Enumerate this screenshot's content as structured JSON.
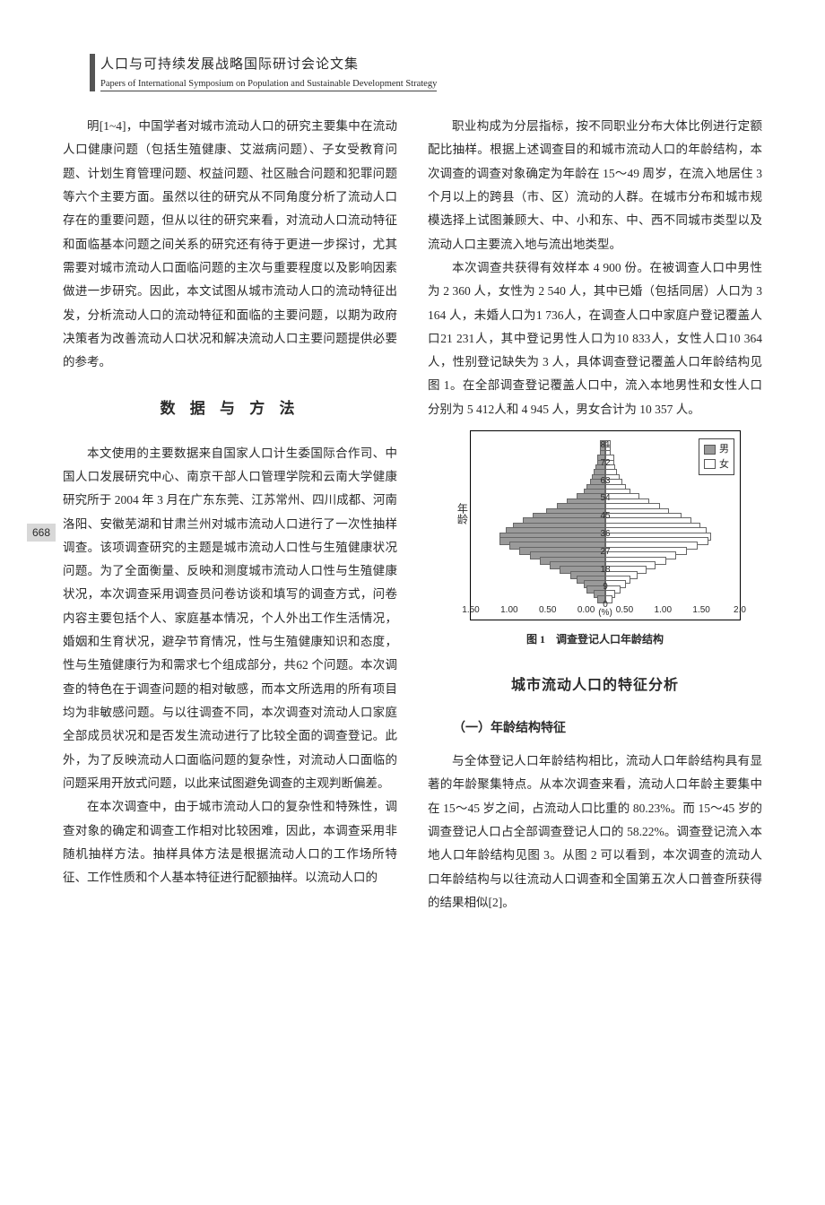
{
  "header": {
    "title_cn": "人口与可持续发展战略国际研讨会论文集",
    "title_en": "Papers of International Symposium on Population and Sustainable Development Strategy"
  },
  "page_number": "668",
  "left_column": {
    "p1": "明[1~4]，中国学者对城市流动人口的研究主要集中在流动人口健康问题（包括生殖健康、艾滋病问题）、子女受教育问题、计划生育管理问题、权益问题、社区融合问题和犯罪问题等六个主要方面。虽然以往的研究从不同角度分析了流动人口存在的重要问题，但从以往的研究来看，对流动人口流动特征和面临基本问题之间关系的研究还有待于更进一步探讨，尤其需要对城市流动人口面临问题的主次与重要程度以及影响因素做进一步研究。因此，本文试图从城市流动人口的流动特征出发，分析流动人口的流动特征和面临的主要问题，以期为政府决策者为改善流动人口状况和解决流动人口主要问题提供必要的参考。",
    "section1_title": "数 据 与 方 法",
    "p2": "本文使用的主要数据来自国家人口计生委国际合作司、中国人口发展研究中心、南京干部人口管理学院和云南大学健康研究所于 2004 年 3 月在广东东莞、江苏常州、四川成都、河南洛阳、安徽芜湖和甘肃兰州对城市流动人口进行了一次性抽样调查。该项调查研究的主题是城市流动人口性与生殖健康状况问题。为了全面衡量、反映和测度城市流动人口性与生殖健康状况，本次调查采用调查员问卷访谈和填写的调查方式，问卷内容主要包括个人、家庭基本情况，个人外出工作生活情况，婚姻和生育状况，避孕节育情况，性与生殖健康知识和态度，性与生殖健康行为和需求七个组成部分，共62 个问题。本次调查的特色在于调查问题的相对敏感，而本文所选用的所有项目均为非敏感问题。与以往调查不同，本次调查对流动人口家庭全部成员状况和是否发生流动进行了比较全面的调查登记。此外，为了反映流动人口面临问题的复杂性，对流动人口面临的问题采用开放式问题，以此来试图避免调查的主观判断偏差。",
    "p3": "在本次调查中，由于城市流动人口的复杂性和特殊性，调查对象的确定和调查工作相对比较困难，因此，本调查采用非随机抽样方法。抽样具体方法是根据流动人口的工作场所特征、工作性质和个人基本特征进行配额抽样。以流动人口的"
  },
  "right_column": {
    "p1": "职业构成为分层指标，按不同职业分布大体比例进行定额配比抽样。根据上述调查目的和城市流动人口的年龄结构，本次调查的调查对象确定为年龄在 15～49 周岁，在流入地居住 3 个月以上的跨县（市、区）流动的人群。在城市分布和城市规模选择上试图兼顾大、中、小和东、中、西不同城市类型以及流动人口主要流入地与流出地类型。",
    "p2": "本次调查共获得有效样本 4 900 份。在被调查人口中男性为 2 360 人，女性为 2 540 人，其中已婚（包括同居）人口为 3 164 人，未婚人口为1 736人，在调查人口中家庭户登记覆盖人口21 231人，其中登记男性人口为10 833人，女性人口10 364人，性别登记缺失为 3 人，具体调查登记覆盖人口年龄结构见图 1。在全部调查登记覆盖人口中，流入本地男性和女性人口分别为 5 412人和 4 945 人，男女合计为 10 357 人。",
    "section2_title": "城市流动人口的特征分析",
    "sub1": "（一）年龄结构特征",
    "p3": "与全体登记人口年龄结构相比，流动人口年龄结构具有显著的年龄聚集特点。从本次调查来看，流动人口年龄主要集中在 15～45 岁之间，占流动人口比重的 80.23%。而 15～45 岁的调查登记人口占全部调查登记人口的 58.22%。调查登记流入本地人口年龄结构见图 3。从图 2 可以看到，本次调查的流动人口年龄结构与以往流动人口调查和全国第五次人口普查所获得的结果相似[2]。"
  },
  "chart": {
    "caption": "图 1　调查登记人口年龄结构",
    "ylabel": "年龄",
    "x_title": "(%)",
    "legend": {
      "male": "男",
      "female": "女"
    },
    "age_labels": [
      "81",
      "72",
      "63",
      "54",
      "45",
      "36",
      "27",
      "18",
      "9",
      "0"
    ],
    "x_ticks": [
      "1.50",
      "1.00",
      "0.50",
      "0.00",
      "0.50",
      "1.00",
      "1.50",
      "2.0"
    ],
    "bar_color_male": "#9a9a9a",
    "bar_color_female": "#ffffff",
    "border_color": "#555555",
    "male_pct": [
      0.05,
      0.05,
      0.05,
      0.1,
      0.1,
      0.12,
      0.15,
      0.18,
      0.2,
      0.25,
      0.3,
      0.4,
      0.55,
      0.7,
      0.85,
      1.05,
      1.2,
      1.35,
      1.45,
      1.55,
      1.55,
      1.4,
      1.25,
      1.1,
      0.95,
      0.8,
      0.65,
      0.5,
      0.4,
      0.3,
      0.25,
      0.15,
      0.1
    ],
    "female_pct": [
      0.05,
      0.05,
      0.05,
      0.1,
      0.1,
      0.12,
      0.15,
      0.18,
      0.22,
      0.28,
      0.35,
      0.48,
      0.62,
      0.78,
      0.92,
      1.1,
      1.25,
      1.38,
      1.48,
      1.55,
      1.5,
      1.35,
      1.18,
      1.02,
      0.88,
      0.72,
      0.58,
      0.45,
      0.35,
      0.28,
      0.2,
      0.12,
      0.08
    ],
    "x_max": 2.0
  }
}
